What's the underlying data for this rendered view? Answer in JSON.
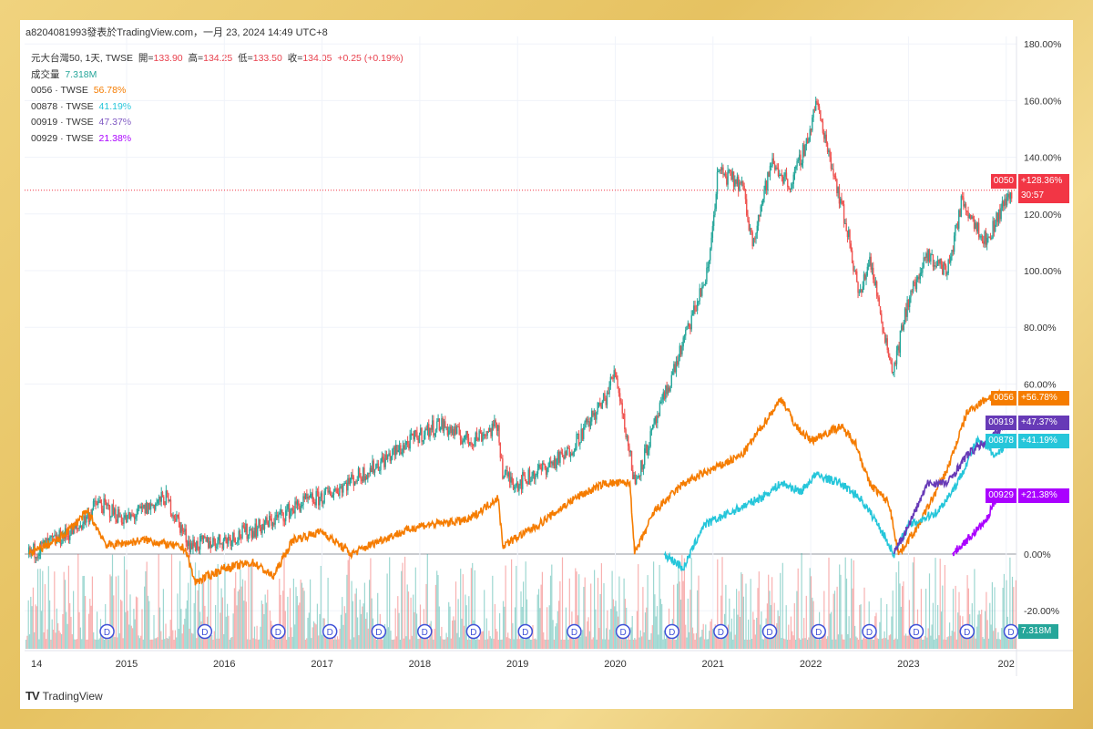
{
  "header": "a8204081993發表於TradingView.com，一月 23, 2024 14:49 UTC+8",
  "legend": {
    "main": {
      "name": "元大台灣50, 1天, TWSE",
      "o_label": "開=",
      "o": "133.90",
      "h_label": "高=",
      "h": "134.25",
      "l_label": "低=",
      "l": "133.50",
      "c_label": "收=",
      "c": "134.05",
      "chg": "+0.25 (+0.19%)"
    },
    "volume": {
      "label": "成交量",
      "value": "7.318M"
    },
    "series": [
      {
        "label": "0056 · TWSE",
        "value": "56.78%",
        "color": "#f57c00"
      },
      {
        "label": "00878 · TWSE",
        "value": "41.19%",
        "color": "#26c6da"
      },
      {
        "label": "00919 · TWSE",
        "value": "47.37%",
        "color": "#7e57c2"
      },
      {
        "label": "00929 · TWSE",
        "value": "21.38%",
        "color": "#aa00ff"
      }
    ]
  },
  "price_tags": [
    {
      "sym": "0050",
      "val": "+128.36%",
      "extra": "30:57",
      "color": "#f23645"
    },
    {
      "sym": "0056",
      "val": "+56.78%",
      "color": "#f57c00"
    },
    {
      "sym": "00919",
      "val": "+47.37%",
      "color": "#673ab7"
    },
    {
      "sym": "00878",
      "val": "+41.19%",
      "color": "#26c6da"
    },
    {
      "sym": "00929",
      "val": "+21.38%",
      "color": "#aa00ff"
    }
  ],
  "volume_tag": "7.318M",
  "brand": "TradingView",
  "chart_data": {
    "type": "line",
    "xlabel": "",
    "ylabel": "",
    "x_ticks": [
      "14",
      "2015",
      "2016",
      "2017",
      "2018",
      "2019",
      "2020",
      "2021",
      "2022",
      "2023",
      "202"
    ],
    "y_ticks": [
      "180.00%",
      "160.00%",
      "140.00%",
      "120.00%",
      "100.00%",
      "80.00%",
      "60.00%",
      "0.00%",
      "-20.00%"
    ],
    "ylim": [
      -30,
      180
    ],
    "xlim": [
      2013.96,
      2024.06
    ],
    "grid": true,
    "dividend_marker_dates": [
      2014.8,
      2015.8,
      2016.55,
      2017.08,
      2017.58,
      2018.05,
      2018.55,
      2019.08,
      2019.58,
      2020.08,
      2020.58,
      2021.08,
      2021.58,
      2022.08,
      2022.6,
      2023.08,
      2023.6,
      2024.06
    ],
    "series": [
      {
        "name": "0050",
        "style": "candlestick",
        "up_color": "#26a69a",
        "down_color": "#ef5350",
        "points": [
          [
            2014.0,
            0
          ],
          [
            2014.5,
            9
          ],
          [
            2014.7,
            18
          ],
          [
            2015.0,
            12
          ],
          [
            2015.4,
            20
          ],
          [
            2015.65,
            3
          ],
          [
            2016.0,
            5
          ],
          [
            2016.4,
            10
          ],
          [
            2016.8,
            18
          ],
          [
            2017.0,
            20
          ],
          [
            2017.5,
            30
          ],
          [
            2018.0,
            42
          ],
          [
            2018.2,
            46
          ],
          [
            2018.5,
            40
          ],
          [
            2018.8,
            45
          ],
          [
            2018.85,
            28
          ],
          [
            2019.0,
            25
          ],
          [
            2019.5,
            35
          ],
          [
            2019.9,
            55
          ],
          [
            2020.0,
            65
          ],
          [
            2020.2,
            25
          ],
          [
            2020.5,
            55
          ],
          [
            2020.7,
            75
          ],
          [
            2020.95,
            100
          ],
          [
            2021.05,
            135
          ],
          [
            2021.3,
            130
          ],
          [
            2021.4,
            110
          ],
          [
            2021.6,
            138
          ],
          [
            2021.8,
            130
          ],
          [
            2022.0,
            150
          ],
          [
            2022.05,
            160
          ],
          [
            2022.2,
            140
          ],
          [
            2022.4,
            110
          ],
          [
            2022.5,
            90
          ],
          [
            2022.6,
            105
          ],
          [
            2022.8,
            70
          ],
          [
            2022.85,
            65
          ],
          [
            2023.0,
            90
          ],
          [
            2023.2,
            105
          ],
          [
            2023.4,
            100
          ],
          [
            2023.55,
            125
          ],
          [
            2023.8,
            110
          ],
          [
            2023.95,
            122
          ],
          [
            2024.06,
            128.36
          ]
        ]
      },
      {
        "name": "0056",
        "color": "#f57c00",
        "points": [
          [
            2014.0,
            0
          ],
          [
            2014.3,
            5
          ],
          [
            2014.6,
            15
          ],
          [
            2014.8,
            3
          ],
          [
            2015.2,
            5
          ],
          [
            2015.6,
            2
          ],
          [
            2015.7,
            -10
          ],
          [
            2016.0,
            -5
          ],
          [
            2016.3,
            -3
          ],
          [
            2016.5,
            -8
          ],
          [
            2016.7,
            5
          ],
          [
            2017.0,
            8
          ],
          [
            2017.3,
            0
          ],
          [
            2017.6,
            5
          ],
          [
            2018.0,
            10
          ],
          [
            2018.5,
            12
          ],
          [
            2018.8,
            20
          ],
          [
            2018.85,
            3
          ],
          [
            2019.2,
            10
          ],
          [
            2019.6,
            20
          ],
          [
            2019.9,
            25
          ],
          [
            2020.15,
            25
          ],
          [
            2020.2,
            0
          ],
          [
            2020.4,
            15
          ],
          [
            2020.7,
            25
          ],
          [
            2021.0,
            30
          ],
          [
            2021.3,
            35
          ],
          [
            2021.5,
            45
          ],
          [
            2021.7,
            55
          ],
          [
            2021.85,
            45
          ],
          [
            2022.0,
            40
          ],
          [
            2022.3,
            45
          ],
          [
            2022.45,
            40
          ],
          [
            2022.6,
            25
          ],
          [
            2022.8,
            18
          ],
          [
            2022.9,
            0
          ],
          [
            2023.1,
            10
          ],
          [
            2023.4,
            30
          ],
          [
            2023.6,
            50
          ],
          [
            2023.8,
            55
          ],
          [
            2024.06,
            56.78
          ]
        ]
      },
      {
        "name": "00878",
        "color": "#26c6da",
        "points": [
          [
            2020.5,
            0
          ],
          [
            2020.7,
            -5
          ],
          [
            2020.9,
            10
          ],
          [
            2021.2,
            15
          ],
          [
            2021.5,
            20
          ],
          [
            2021.7,
            25
          ],
          [
            2021.9,
            22
          ],
          [
            2022.05,
            28
          ],
          [
            2022.3,
            25
          ],
          [
            2022.5,
            20
          ],
          [
            2022.7,
            10
          ],
          [
            2022.85,
            0
          ],
          [
            2023.0,
            10
          ],
          [
            2023.3,
            15
          ],
          [
            2023.5,
            25
          ],
          [
            2023.7,
            40
          ],
          [
            2023.9,
            35
          ],
          [
            2024.06,
            41.19
          ]
        ]
      },
      {
        "name": "00919",
        "color": "#673ab7",
        "points": [
          [
            2022.85,
            0
          ],
          [
            2023.0,
            10
          ],
          [
            2023.2,
            25
          ],
          [
            2023.4,
            25
          ],
          [
            2023.6,
            35
          ],
          [
            2023.8,
            40
          ],
          [
            2024.06,
            47.37
          ]
        ]
      },
      {
        "name": "00929",
        "color": "#aa00ff",
        "points": [
          [
            2023.45,
            0
          ],
          [
            2023.6,
            5
          ],
          [
            2023.8,
            12
          ],
          [
            2023.9,
            20
          ],
          [
            2024.06,
            21.38
          ]
        ]
      }
    ]
  }
}
